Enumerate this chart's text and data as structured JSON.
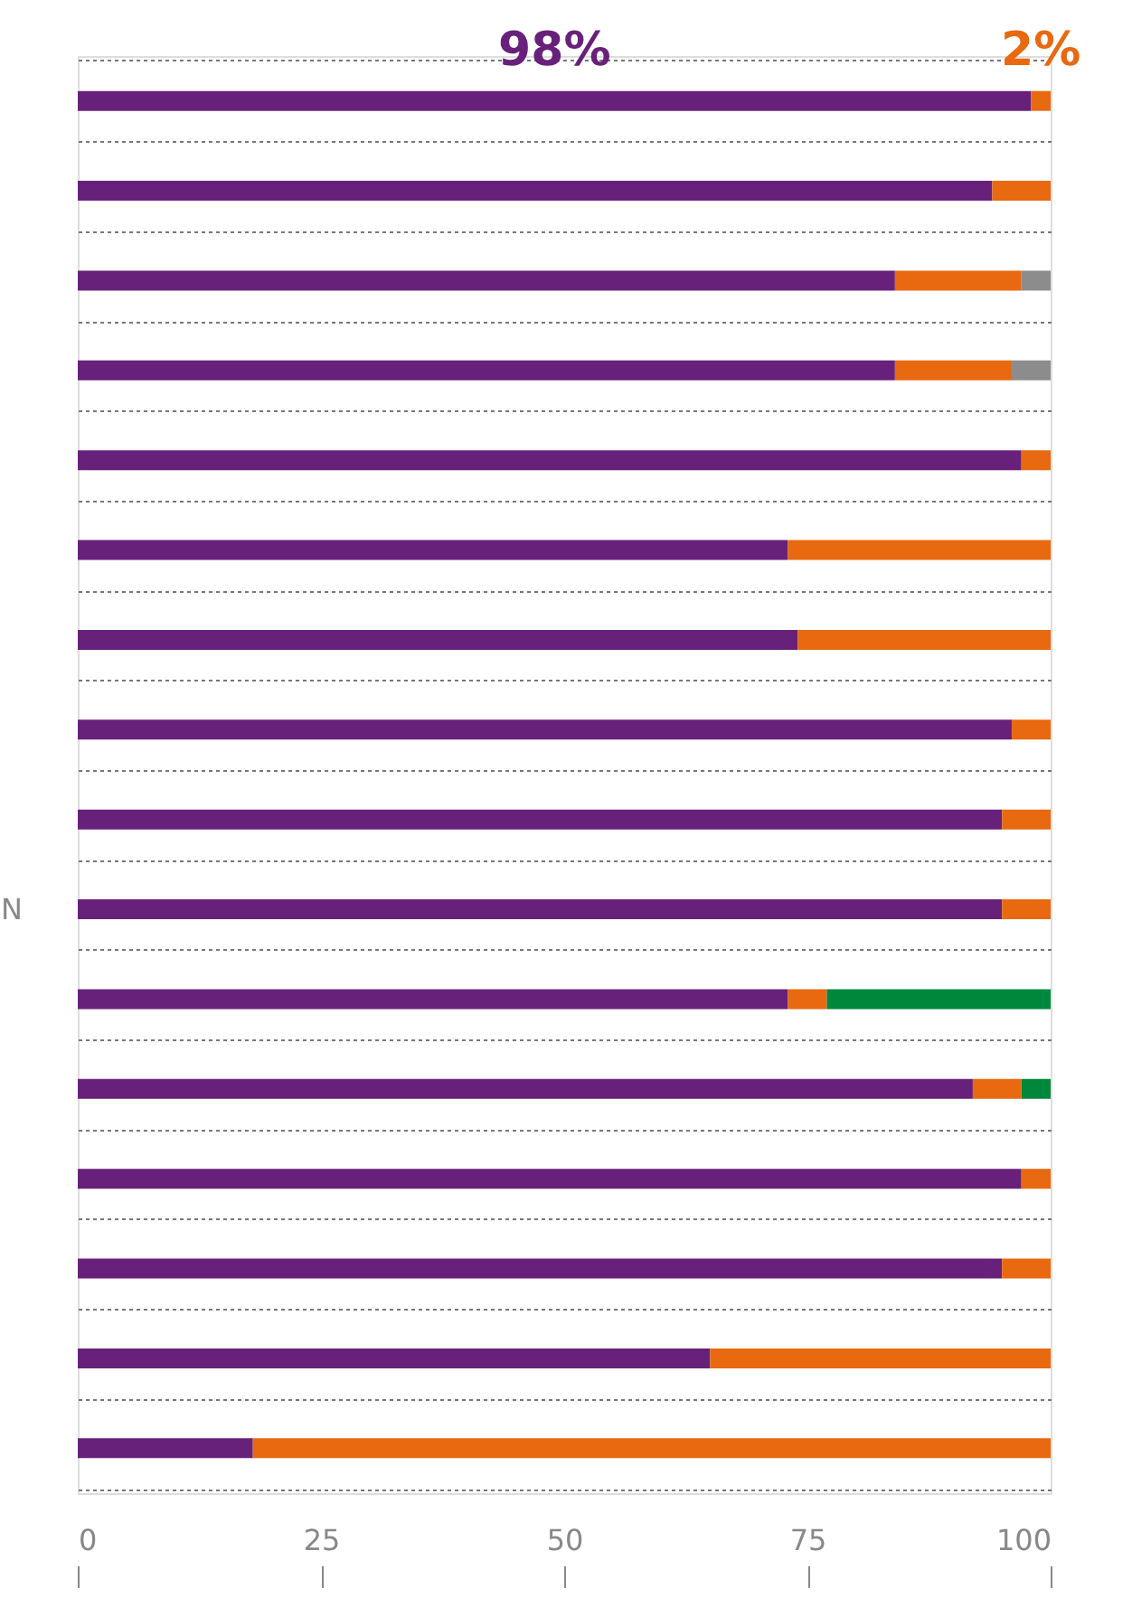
{
  "chart_data": {
    "type": "bar",
    "orientation": "horizontal",
    "stacked": true,
    "categories": [
      null,
      null,
      null,
      null,
      null,
      null,
      null,
      null,
      null,
      "N",
      null,
      null,
      null,
      null,
      null,
      null
    ],
    "series": [
      {
        "color": "#68217a",
        "values": [
          98,
          94,
          84,
          84,
          97,
          73,
          74,
          96,
          95,
          95,
          73,
          92,
          97,
          95,
          65,
          18
        ],
        "value_labels": [
          "98%",
          null,
          null,
          null,
          null,
          null,
          null,
          null,
          null,
          null,
          null,
          null,
          null,
          null,
          null,
          null
        ]
      },
      {
        "color": "#e8690f",
        "values": [
          2,
          6,
          13,
          12,
          3,
          27,
          26,
          4,
          5,
          5,
          4,
          5,
          3,
          5,
          35,
          82
        ],
        "value_labels": [
          "2%",
          null,
          null,
          null,
          null,
          null,
          null,
          null,
          null,
          null,
          null,
          null,
          null,
          null,
          null,
          null
        ]
      },
      {
        "color": "#8c8c8c",
        "values": [
          null,
          null,
          3,
          4,
          null,
          null,
          null,
          null,
          null,
          null,
          null,
          null,
          null,
          null,
          null,
          null
        ]
      },
      {
        "color": "#00873c",
        "values": [
          null,
          null,
          null,
          null,
          null,
          null,
          null,
          null,
          null,
          null,
          23,
          3,
          null,
          null,
          null,
          null
        ]
      }
    ],
    "xlim": [
      0,
      100
    ],
    "xticks": [
      0,
      25,
      50,
      75,
      100
    ],
    "grid": "y"
  }
}
